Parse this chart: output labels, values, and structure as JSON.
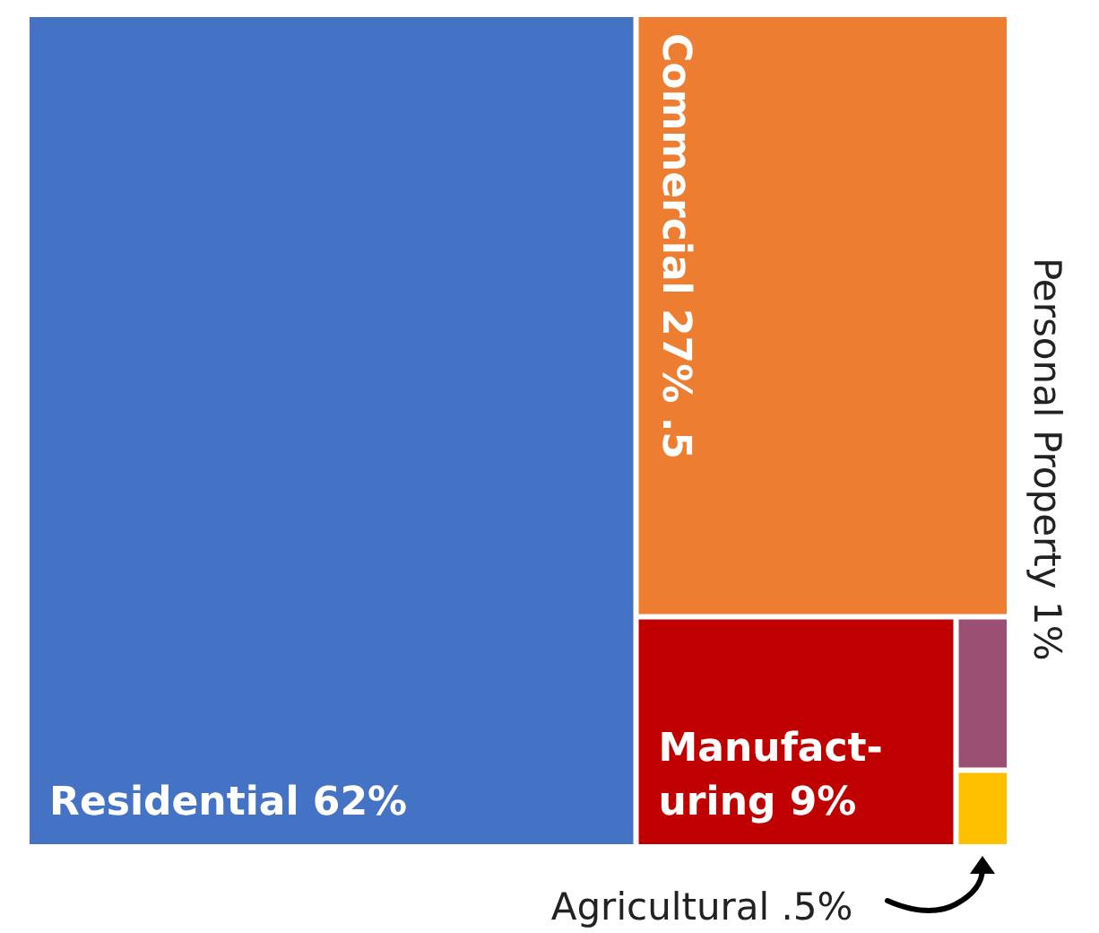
{
  "chart_data": {
    "type": "other",
    "categories": [
      "Residential",
      "Commercial",
      "Manufact-uring",
      "Personal Property",
      "Agricultural"
    ],
    "values": [
      62,
      27.5,
      9,
      1,
      0.5
    ],
    "value_labels": [
      "62%",
      "27% .5",
      "9%",
      "1%",
      ".5%"
    ],
    "colors": [
      "#4472c4",
      "#ed7d31",
      "#c00000",
      "#9b4f72",
      "#ffc000"
    ]
  }
}
